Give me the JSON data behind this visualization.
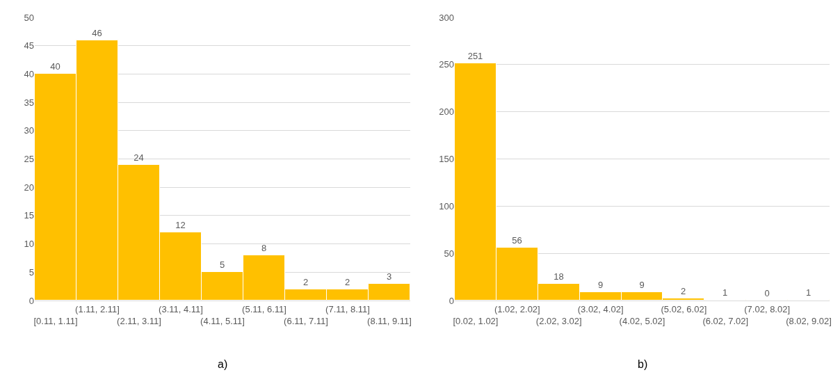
{
  "chart_data": [
    {
      "type": "bar",
      "categories": [
        "[0.11, 1.11]",
        "(1.11, 2.11]",
        "(2.11, 3.11]",
        "(3.11, 4.11]",
        "(4.11, 5.11]",
        "(5.11, 6.11]",
        "(6.11, 7.11]",
        "(7.11, 8.11]",
        "(8.11, 9.11]"
      ],
      "values": [
        40,
        46,
        24,
        12,
        5,
        8,
        2,
        2,
        3
      ],
      "color": "#ffc000",
      "ylim": [
        0,
        50
      ],
      "yticks": [
        0,
        5,
        10,
        15,
        20,
        25,
        30,
        35,
        40,
        45,
        50
      ],
      "grid": "y",
      "data_labels": true,
      "annotations": [
        "a)"
      ]
    },
    {
      "type": "bar",
      "categories": [
        "[0.02, 1.02]",
        "(1.02, 2.02]",
        "(2.02, 3.02]",
        "(3.02, 4.02]",
        "(4.02, 5.02]",
        "(5.02, 6.02]",
        "(6.02, 7.02]",
        "(7.02, 8.02]",
        "(8.02, 9.02]"
      ],
      "values": [
        251,
        56,
        18,
        9,
        9,
        2,
        1,
        0,
        1
      ],
      "color": "#ffc000",
      "ylim": [
        0,
        300
      ],
      "yticks": [
        0,
        50,
        100,
        150,
        200,
        250,
        300
      ],
      "grid": "y",
      "data_labels": true,
      "annotations": [
        "b)"
      ]
    }
  ]
}
